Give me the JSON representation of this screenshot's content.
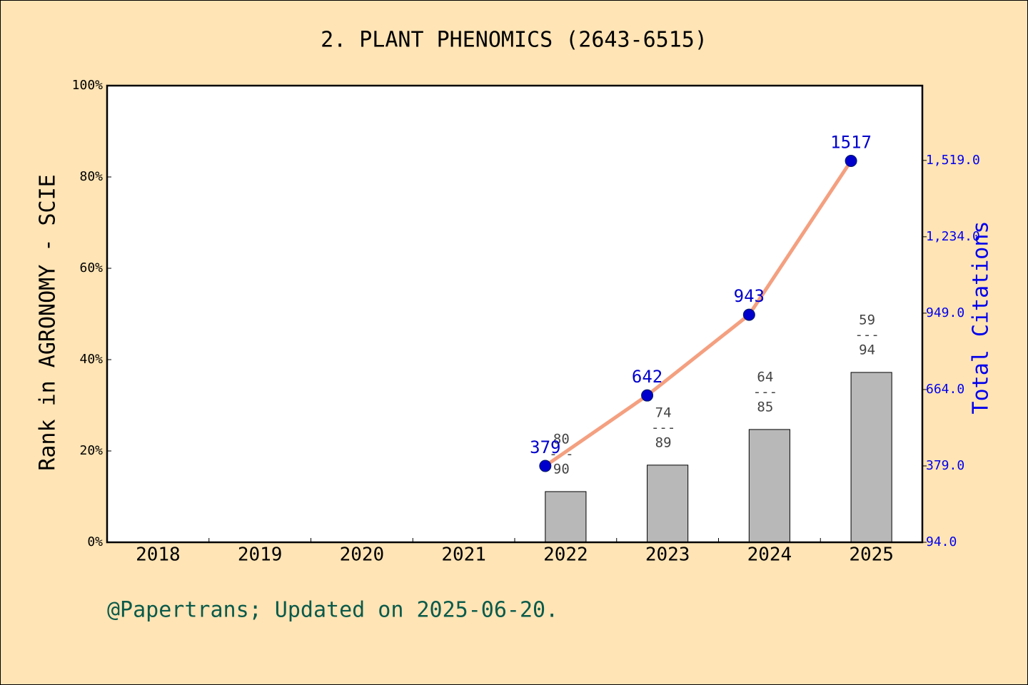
{
  "chart_data": {
    "type": "bar_line",
    "title": "2. PLANT PHENOMICS (2643-6515)",
    "y_label": "Rank in AGRONOMY - SCIE",
    "y2_label": "Total Citations",
    "footer": "@Papertrans; Updated on 2025-06-20.",
    "categories": [
      "2018",
      "2019",
      "2020",
      "2021",
      "2022",
      "2023",
      "2024",
      "2025"
    ],
    "series": [
      {
        "type": "bar",
        "color": "#b8b8b8",
        "values": [
          null,
          null,
          null,
          null,
          11.1,
          16.9,
          24.7,
          37.2
        ],
        "ranks": [
          null,
          null,
          null,
          null,
          80,
          74,
          64,
          59
        ],
        "totals": [
          null,
          null,
          null,
          null,
          90,
          89,
          85,
          94
        ],
        "separator": "---"
      },
      {
        "type": "line",
        "axis": "y2",
        "color": "#f4a080",
        "marker_color": "#0000cc",
        "values": [
          null,
          null,
          null,
          null,
          379,
          642,
          943,
          1517
        ]
      }
    ],
    "ylim": [
      0,
      100
    ],
    "yticks": [
      {
        "value": 0,
        "label": "0%"
      },
      {
        "value": 20,
        "label": "20%"
      },
      {
        "value": 40,
        "label": "40%"
      },
      {
        "value": 60,
        "label": "60%"
      },
      {
        "value": 80,
        "label": "80%"
      },
      {
        "value": 100,
        "label": "100%"
      }
    ],
    "y2lim": [
      94,
      1798
    ],
    "y2ticks": [
      {
        "value": 94,
        "label": "94.0"
      },
      {
        "value": 379,
        "label": "379.0"
      },
      {
        "value": 664,
        "label": "664.0"
      },
      {
        "value": 949,
        "label": "949.0"
      },
      {
        "value": 1234,
        "label": "1,234.0"
      },
      {
        "value": 1519,
        "label": "1,519.0"
      }
    ]
  }
}
